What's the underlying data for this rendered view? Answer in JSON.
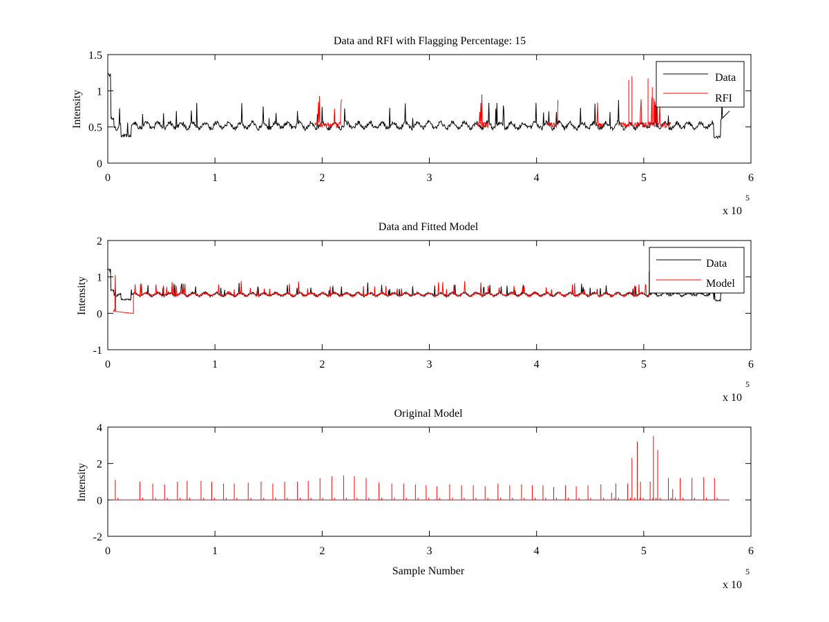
{
  "chart_data": [
    {
      "type": "line",
      "title": "Data and RFI with Flagging Percentage: 15",
      "xlabel": "",
      "ylabel": "Intensity",
      "xlim": [
        0,
        600000
      ],
      "ylim": [
        0,
        1.5
      ],
      "x_ticks": [
        0,
        1,
        2,
        3,
        4,
        5,
        6
      ],
      "y_ticks": [
        0,
        0.5,
        1,
        1.5
      ],
      "x_multiplier": "x 10",
      "x_multiplier_exp": "5",
      "legend_position": "top-right",
      "series": [
        {
          "name": "Data",
          "color": "#000000",
          "kind": "baseline_with_spikes",
          "x_range": [
            0,
            580000
          ],
          "baseline": 0.52,
          "features": [
            {
              "x": 0,
              "y": 1.27
            },
            {
              "x": 2000,
              "y": 1.2
            },
            {
              "x": 4000,
              "y": 0.55
            },
            {
              "x": 16000,
              "y": 0.35
            },
            {
              "x": 568000,
              "y": 0.35
            },
            {
              "x": 575000,
              "y": 0.72
            }
          ]
        },
        {
          "name": "RFI",
          "color": "#ff0000",
          "kind": "flagged_segments",
          "segments": [
            [
              193000,
              218000
            ],
            [
              345000,
              355000
            ],
            [
              410000,
              420000
            ],
            [
              455000,
              462000
            ],
            [
              478000,
              525000
            ]
          ],
          "spikes": [
            {
              "x": 486000,
              "y": 1.15
            },
            {
              "x": 489000,
              "y": 1.2
            },
            {
              "x": 504000,
              "y": 1.17
            },
            {
              "x": 508000,
              "y": 1.05
            }
          ]
        }
      ]
    },
    {
      "type": "line",
      "title": "Data and Fitted Model",
      "xlabel": "",
      "ylabel": "Intensity",
      "xlim": [
        0,
        600000
      ],
      "ylim": [
        -1,
        2
      ],
      "x_ticks": [
        0,
        1,
        2,
        3,
        4,
        5,
        6
      ],
      "y_ticks": [
        -1,
        0,
        1,
        2
      ],
      "x_multiplier": "x 10",
      "x_multiplier_exp": "5",
      "legend_position": "top-right",
      "series": [
        {
          "name": "Data",
          "color": "#000000",
          "kind": "baseline_with_spikes",
          "x_range": [
            0,
            580000
          ],
          "baseline": 0.52,
          "features": [
            {
              "x": 0,
              "y": 1.27
            },
            {
              "x": 2000,
              "y": 1.2
            },
            {
              "x": 16000,
              "y": 0.35
            },
            {
              "x": 568000,
              "y": 0.35
            },
            {
              "x": 575000,
              "y": 0.72
            }
          ]
        },
        {
          "name": "Model",
          "color": "#ff0000",
          "kind": "model_fit",
          "x_range": [
            5000,
            505000
          ],
          "baseline": 0.52,
          "features": [
            {
              "x": 5000,
              "y": 0.05
            },
            {
              "x": 7000,
              "y": 1.1
            },
            {
              "x": 24000,
              "y": 0.0
            }
          ]
        }
      ]
    },
    {
      "type": "line",
      "title": "Original Model",
      "xlabel": "Sample Number",
      "ylabel": "Intensity",
      "xlim": [
        0,
        600000
      ],
      "ylim": [
        -2,
        4
      ],
      "x_ticks": [
        0,
        1,
        2,
        3,
        4,
        5,
        6
      ],
      "y_ticks": [
        -2,
        0,
        2,
        4
      ],
      "x_multiplier": "x 10",
      "x_multiplier_exp": "5",
      "series": [
        {
          "name": "",
          "color": "#ff0000",
          "kind": "spike_train",
          "x_range": [
            3000,
            580000
          ],
          "baseline": 0.0,
          "spikes": [
            {
              "x": 7000,
              "y": 1.1
            },
            {
              "x": 30000,
              "y": 1.0
            },
            {
              "x": 42000,
              "y": 0.9
            },
            {
              "x": 53000,
              "y": 0.85
            },
            {
              "x": 65000,
              "y": 1.0
            },
            {
              "x": 74000,
              "y": 1.05
            },
            {
              "x": 87000,
              "y": 1.05
            },
            {
              "x": 97000,
              "y": 1.0
            },
            {
              "x": 108000,
              "y": 0.9
            },
            {
              "x": 118000,
              "y": 0.9
            },
            {
              "x": 131000,
              "y": 0.95
            },
            {
              "x": 143000,
              "y": 1.0
            },
            {
              "x": 154000,
              "y": 0.9
            },
            {
              "x": 165000,
              "y": 1.0
            },
            {
              "x": 177000,
              "y": 1.0
            },
            {
              "x": 187000,
              "y": 1.05
            },
            {
              "x": 198000,
              "y": 1.2
            },
            {
              "x": 209000,
              "y": 1.3
            },
            {
              "x": 220000,
              "y": 1.35
            },
            {
              "x": 230000,
              "y": 1.3
            },
            {
              "x": 241000,
              "y": 1.2
            },
            {
              "x": 253000,
              "y": 0.95
            },
            {
              "x": 265000,
              "y": 0.9
            },
            {
              "x": 276000,
              "y": 0.9
            },
            {
              "x": 287000,
              "y": 0.85
            },
            {
              "x": 297000,
              "y": 0.8
            },
            {
              "x": 307000,
              "y": 0.75
            },
            {
              "x": 319000,
              "y": 0.85
            },
            {
              "x": 330000,
              "y": 0.8
            },
            {
              "x": 341000,
              "y": 0.8
            },
            {
              "x": 352000,
              "y": 0.75
            },
            {
              "x": 364000,
              "y": 0.9
            },
            {
              "x": 375000,
              "y": 0.8
            },
            {
              "x": 386000,
              "y": 0.85
            },
            {
              "x": 396000,
              "y": 0.8
            },
            {
              "x": 406000,
              "y": 0.8
            },
            {
              "x": 416000,
              "y": 0.7
            },
            {
              "x": 427000,
              "y": 0.8
            },
            {
              "x": 437000,
              "y": 0.75
            },
            {
              "x": 448000,
              "y": 0.8
            },
            {
              "x": 460000,
              "y": 0.85
            },
            {
              "x": 470000,
              "y": 0.4
            },
            {
              "x": 474000,
              "y": 0.9
            },
            {
              "x": 485000,
              "y": 0.9
            },
            {
              "x": 489000,
              "y": 2.3
            },
            {
              "x": 494000,
              "y": 3.2
            },
            {
              "x": 497000,
              "y": 1.0
            },
            {
              "x": 506000,
              "y": 1.0
            },
            {
              "x": 509000,
              "y": 3.5
            },
            {
              "x": 513000,
              "y": 2.75
            },
            {
              "x": 523000,
              "y": 1.2
            },
            {
              "x": 527000,
              "y": 0.6
            },
            {
              "x": 534000,
              "y": 1.2
            },
            {
              "x": 545000,
              "y": 1.2
            },
            {
              "x": 556000,
              "y": 1.25
            },
            {
              "x": 566000,
              "y": 1.2
            }
          ]
        }
      ]
    }
  ]
}
